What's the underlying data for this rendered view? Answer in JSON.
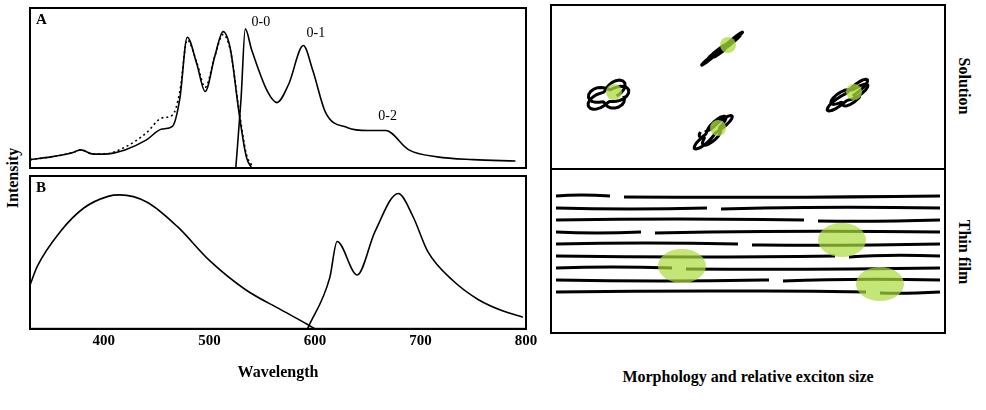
{
  "chart_data": [
    {
      "panel": "A",
      "type": "line",
      "xlim": [
        330,
        800
      ],
      "xticks": [
        400,
        500,
        600,
        700,
        800
      ],
      "ylim": [
        0,
        1.15
      ],
      "tick_labels": false,
      "grid": false,
      "series": [
        {
          "color": "#000000",
          "line_style": "solid",
          "x": [
            330,
            350,
            370,
            378,
            390,
            400,
            420,
            440,
            455,
            465,
            472,
            479,
            488,
            496,
            505,
            513,
            520,
            528,
            535,
            540
          ],
          "values": [
            0.06,
            0.08,
            0.11,
            0.13,
            0.1,
            0.1,
            0.13,
            0.2,
            0.28,
            0.3,
            0.5,
            0.94,
            0.75,
            0.55,
            0.8,
            0.98,
            0.85,
            0.4,
            0.08,
            0.0
          ]
        },
        {
          "color": "#000000",
          "line_style": "dotted",
          "x": [
            330,
            350,
            370,
            378,
            390,
            400,
            420,
            440,
            455,
            465,
            472,
            479,
            488,
            496,
            505,
            513,
            520,
            528,
            535,
            540
          ],
          "values": [
            0.06,
            0.08,
            0.11,
            0.13,
            0.1,
            0.1,
            0.15,
            0.25,
            0.36,
            0.38,
            0.55,
            0.92,
            0.76,
            0.58,
            0.8,
            0.96,
            0.84,
            0.42,
            0.1,
            0.02
          ]
        },
        {
          "color": "#000000",
          "line_style": "solid",
          "x": [
            525,
            530,
            534,
            540,
            555,
            564,
            575,
            589,
            598,
            610,
            631,
            650,
            667,
            689,
            716,
            750,
            790
          ],
          "values": [
            0.0,
            0.5,
            1.0,
            0.85,
            0.55,
            0.47,
            0.6,
            0.88,
            0.7,
            0.4,
            0.29,
            0.27,
            0.27,
            0.13,
            0.08,
            0.06,
            0.05
          ]
        }
      ],
      "annotations": [
        {
          "text": "0-0",
          "x": 540,
          "y": 1.0
        },
        {
          "text": "0-1",
          "x": 592,
          "y": 0.92
        },
        {
          "text": "0-2",
          "x": 660,
          "y": 0.32
        }
      ]
    },
    {
      "panel": "B",
      "type": "line",
      "x_label": "Wavelength",
      "xlim": [
        330,
        800
      ],
      "xticks": [
        400,
        500,
        600,
        700,
        800
      ],
      "ylim": [
        0,
        1.05
      ],
      "tick_labels": "x",
      "grid": false,
      "series": [
        {
          "color": "#000000",
          "line_style": "solid",
          "x": [
            330,
            337,
            359,
            381,
            404,
            415,
            441,
            470,
            500,
            534,
            568,
            593,
            600
          ],
          "values": [
            0.3,
            0.43,
            0.67,
            0.83,
            0.91,
            0.92,
            0.87,
            0.7,
            0.47,
            0.27,
            0.13,
            0.03,
            0.0
          ]
        },
        {
          "color": "#000000",
          "line_style": "solid",
          "x": [
            593,
            614,
            621,
            640,
            657,
            679,
            693,
            707,
            731,
            755,
            779,
            797
          ],
          "values": [
            0.0,
            0.35,
            0.6,
            0.37,
            0.67,
            0.93,
            0.77,
            0.53,
            0.33,
            0.2,
            0.12,
            0.08
          ]
        }
      ]
    }
  ],
  "y_label": "Intensity",
  "diagram": {
    "caption": "Morphology and relative exciton size",
    "panels": [
      {
        "label": "Solution"
      },
      {
        "label": "Thin film"
      }
    ]
  }
}
